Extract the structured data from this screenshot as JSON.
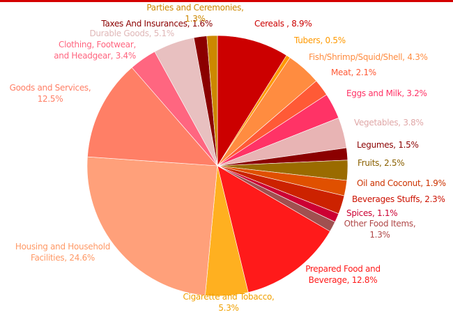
{
  "chart_data": {
    "type": "pie",
    "labels": [
      "Cereals , 8.9%",
      "Tubers, 0.5%",
      "Fish/Shrimp/Squid/Shell, 4.3%",
      "Meat, 2.1%",
      "Eggs and Milk, 3.2%",
      "Vegetables, 3.8%",
      "Legumes, 1.5%",
      "Fruits, 2.5%",
      "Oil and Coconut, 1.9%",
      "Beverages Stuffs, 2.3%",
      "Spices, 1.1%",
      "Other Food Items,\n1.3%",
      "Prepared Food and\nBeverage, 12.8%",
      "Cigarette and Tobacco,\n5.3%",
      "Housing and Household\nFacilities, 24.6%",
      "Goods and Services,\n12.5%",
      "Clothing, Footwear,\nand Headgear, 3.4%",
      "Durable Goods, 5.1%",
      "Taxes And Insurances, 1.6%",
      "Parties and Ceremonies,\n1.3%"
    ],
    "values": [
      8.9,
      0.5,
      4.3,
      2.1,
      3.2,
      3.8,
      1.5,
      2.5,
      1.9,
      2.3,
      1.1,
      1.3,
      12.8,
      5.3,
      24.6,
      12.5,
      3.4,
      5.1,
      1.6,
      1.3
    ],
    "colors": [
      "#cc0000",
      "#ff9900",
      "#ff8c40",
      "#ff5a36",
      "#ff3366",
      "#e8b4b4",
      "#8b0000",
      "#9a6b00",
      "#e05000",
      "#cc2200",
      "#cc0033",
      "#a05050",
      "#ff1a1a",
      "#ffb020",
      "#ffa07a",
      "#ff7f66",
      "#ff6680",
      "#e8c0c0",
      "#8b0000",
      "#cc8800"
    ],
    "label_colors": [
      "#cc0000",
      "#ff9900",
      "#ff8c40",
      "#ff5a36",
      "#ff3366",
      "#e0a8a8",
      "#8b0000",
      "#8a6000",
      "#cc3300",
      "#cc1100",
      "#cc0033",
      "#b04848",
      "#ff1a1a",
      "#f0a000",
      "#ff9966",
      "#ff7f66",
      "#ff6680",
      "#e0b8b8",
      "#8b0000",
      "#cc8800"
    ]
  }
}
